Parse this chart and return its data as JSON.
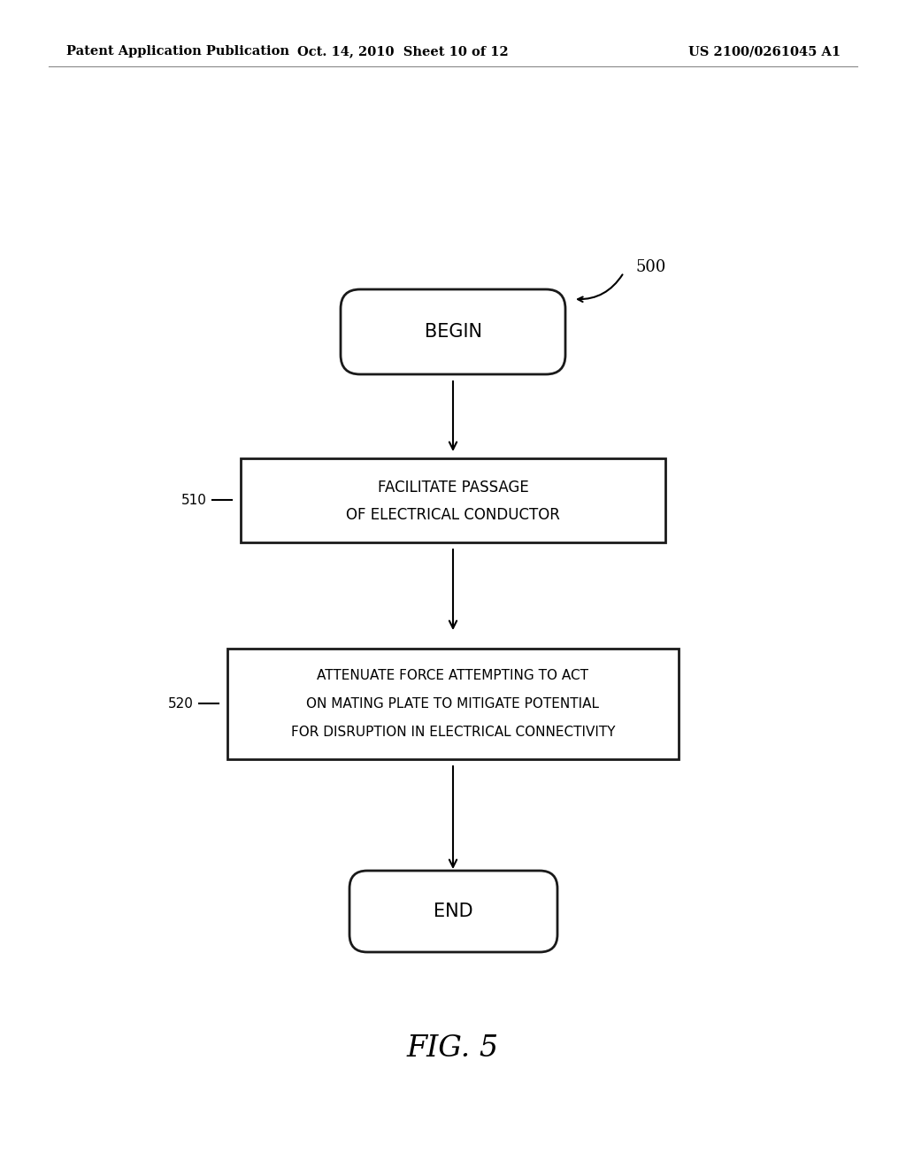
{
  "fig_width": 10.24,
  "fig_height": 13.2,
  "bg_color": "#ffffff",
  "header_left": "Patent Application Publication",
  "header_center": "Oct. 14, 2010  Sheet 10 of 12",
  "header_right": "US 2100/0261045 A1",
  "fig_label": "FIG. 5",
  "diagram_label": "500",
  "begin_text": "BEGIN",
  "end_text": "END",
  "box1_label": "510",
  "box1_line1": "FACILITATE PASSAGE",
  "box1_line2": "OF ELECTRICAL CONDUCTOR",
  "box2_label": "520",
  "box2_line1": "ATTENUATE FORCE ATTEMPTING TO ACT",
  "box2_line2": "ON MATING PLATE TO MITIGATE POTENTIAL",
  "box2_line3": "FOR DISRUPTION IN ELECTRICAL CONNECTIVITY",
  "text_color": "#000000",
  "box_edge_color": "#1a1a1a",
  "box_fill_color": "#ffffff",
  "arrow_color": "#000000",
  "header_fontsize": 10.5,
  "body_fontsize": 10,
  "label_fontsize": 11,
  "fig_label_fontsize": 24
}
